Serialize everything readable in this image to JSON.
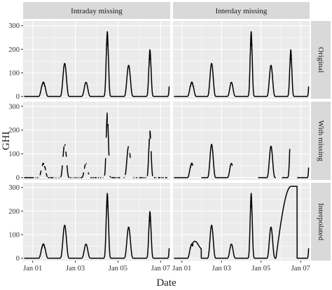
{
  "chart_data": {
    "type": "line",
    "xlabel": "Date",
    "ylabel": "GHI",
    "ylim": [
      -10,
      320
    ],
    "xlim": [
      0.55,
      7.45
    ],
    "yticks": [
      0,
      100,
      200,
      300
    ],
    "xticks": [
      {
        "value": 1,
        "label": "Jan 01"
      },
      {
        "value": 3,
        "label": "Jan 03"
      },
      {
        "value": 5,
        "label": "Jan 05"
      },
      {
        "value": 7,
        "label": "Jan 07"
      }
    ],
    "column_titles": [
      "Intraday missing",
      "Interday missing"
    ],
    "row_titles": [
      "Original",
      "With missing",
      "Interpolated"
    ],
    "grid": true,
    "colors": {
      "panel": "#ebebeb",
      "strip": "#d9d9d9",
      "grid": "#ffffff",
      "line": "#000000"
    },
    "daily_peaks": [
      62,
      140,
      60,
      275,
      132,
      198,
      300
    ],
    "panels": [
      {
        "row": 0,
        "col": 0,
        "kind": "original"
      },
      {
        "row": 0,
        "col": 1,
        "kind": "original"
      },
      {
        "row": 1,
        "col": 0,
        "kind": "intraday_missing"
      },
      {
        "row": 1,
        "col": 1,
        "kind": "interday_missing"
      },
      {
        "row": 2,
        "col": 0,
        "kind": "original"
      },
      {
        "row": 2,
        "col": 1,
        "kind": "interday_interpolated"
      }
    ]
  }
}
